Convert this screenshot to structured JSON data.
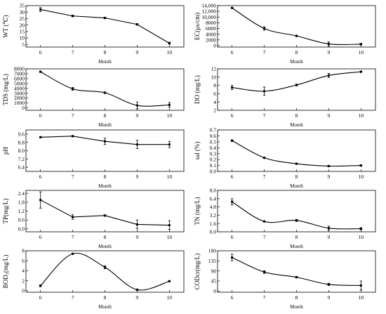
{
  "chart_data": [
    {
      "type": "line",
      "ylabel": "WT (℃)",
      "xlabel": "Month",
      "x": [
        6,
        7,
        8,
        9,
        10
      ],
      "y": [
        32,
        27,
        25.5,
        20.5,
        6
      ],
      "err": [
        1.5,
        0.6,
        0.6,
        0.6,
        0.8
      ],
      "ylim": [
        3,
        35
      ],
      "yticks": [
        "5",
        "10",
        "15",
        "20",
        "25",
        "30",
        "35"
      ],
      "smooth": false
    },
    {
      "type": "line",
      "ylabel": "EC(μs/cm)",
      "xlabel": "Month",
      "x": [
        6,
        7,
        8,
        9,
        10
      ],
      "y": [
        13200,
        6000,
        3400,
        600,
        500
      ],
      "err": [
        200,
        600,
        200,
        700,
        300
      ],
      "ylim": [
        -500,
        14000
      ],
      "yticks": [
        "0",
        "2000",
        "4000",
        "6000",
        "8000",
        "10,000",
        "12,000",
        "14,000"
      ],
      "smooth": true
    },
    {
      "type": "line",
      "ylabel": "TDS (mg/L)",
      "xlabel": "Month",
      "x": [
        6,
        7,
        8,
        9,
        10
      ],
      "y": [
        7400,
        3900,
        3100,
        500,
        600
      ],
      "err": [
        150,
        300,
        150,
        700,
        500
      ],
      "ylim": [
        -500,
        8000
      ],
      "yticks": [
        "0",
        "1000",
        "2000",
        "3000",
        "4000",
        "5000",
        "6000",
        "7000",
        "8000"
      ],
      "smooth": true
    },
    {
      "type": "line",
      "ylabel": "DO (mg/L)",
      "xlabel": "Month",
      "x": [
        6,
        7,
        8,
        9,
        10
      ],
      "y": [
        7.5,
        6.6,
        8.1,
        10.4,
        11.3
      ],
      "err": [
        0.5,
        1.0,
        0.2,
        0.5,
        0.15
      ],
      "ylim": [
        2,
        12
      ],
      "yticks": [
        "2",
        "4",
        "6",
        "8",
        "10",
        "12"
      ],
      "smooth": true
    },
    {
      "type": "line",
      "ylabel": "pH",
      "xlabel": "Month",
      "x": [
        6,
        7,
        8,
        9,
        10
      ],
      "y": [
        9.3,
        9.4,
        8.9,
        8.6,
        8.6
      ],
      "err": [
        0.05,
        0.05,
        0.3,
        0.4,
        0.3
      ],
      "ylim": [
        6,
        10
      ],
      "yticks": [
        "6.4",
        "7.2",
        "8.0",
        "8.8",
        "9.6"
      ],
      "smooth": false
    },
    {
      "type": "line",
      "ylabel": "sal (%)",
      "xlabel": "Month",
      "x": [
        6,
        7,
        8,
        9,
        10
      ],
      "y": [
        0.52,
        0.23,
        0.13,
        0.09,
        0.1
      ],
      "err": [
        0.015,
        0.01,
        0.01,
        0.01,
        0.01
      ],
      "ylim": [
        0,
        0.7
      ],
      "yticks": [
        "0.0",
        "0.1",
        "0.2",
        "0.3",
        "0.4",
        "0.5",
        "0.6",
        "0.7"
      ],
      "smooth": true
    },
    {
      "type": "line",
      "ylabel": "TP(mg/L)",
      "xlabel": "Month",
      "x": [
        6,
        7,
        8,
        9,
        10
      ],
      "y": [
        1.95,
        0.8,
        0.9,
        0.3,
        0.25
      ],
      "err": [
        0.55,
        0.15,
        0.05,
        0.3,
        0.3
      ],
      "ylim": [
        -0.2,
        2.6
      ],
      "yticks": [
        "0.0",
        "0.6",
        "1.2",
        "1.8",
        "2.4"
      ],
      "smooth": false
    },
    {
      "type": "line",
      "ylabel": "TN (mg/L)",
      "xlabel": "Month",
      "x": [
        6,
        7,
        8,
        9,
        10
      ],
      "y": [
        5.8,
        2.0,
        2.2,
        0.7,
        0.6
      ],
      "err": [
        0.6,
        0.1,
        0.2,
        0.4,
        0.2
      ],
      "ylim": [
        0,
        8
      ],
      "yticks": [
        "0.0",
        "1.6",
        "3.2",
        "4.8",
        "6.4",
        "8.0"
      ],
      "smooth": true
    },
    {
      "type": "line",
      "ylabel": "BOD₅(mg/L)",
      "xlabel": "Month",
      "x": [
        6,
        7,
        8,
        9,
        10
      ],
      "y": [
        1.0,
        7.4,
        4.7,
        0.2,
        1.9
      ],
      "err": [
        0.2,
        0.1,
        0.3,
        0.1,
        0.1
      ],
      "ylim": [
        -0.3,
        8
      ],
      "yticks": [
        "0",
        "2",
        "4",
        "6",
        "8"
      ],
      "smooth": true
    },
    {
      "type": "line",
      "ylabel": "CODcr(mg/L)",
      "xlabel": "Month",
      "x": [
        6,
        7,
        8,
        9,
        10
      ],
      "y": [
        150,
        85,
        62,
        30,
        25
      ],
      "err": [
        15,
        6,
        3,
        5,
        20
      ],
      "ylim": [
        -5,
        180
      ],
      "yticks": [
        "0",
        "45",
        "90",
        "135",
        "180"
      ],
      "smooth": true
    }
  ],
  "xtick_labels": [
    "6",
    "7",
    "8",
    "9",
    "10"
  ]
}
